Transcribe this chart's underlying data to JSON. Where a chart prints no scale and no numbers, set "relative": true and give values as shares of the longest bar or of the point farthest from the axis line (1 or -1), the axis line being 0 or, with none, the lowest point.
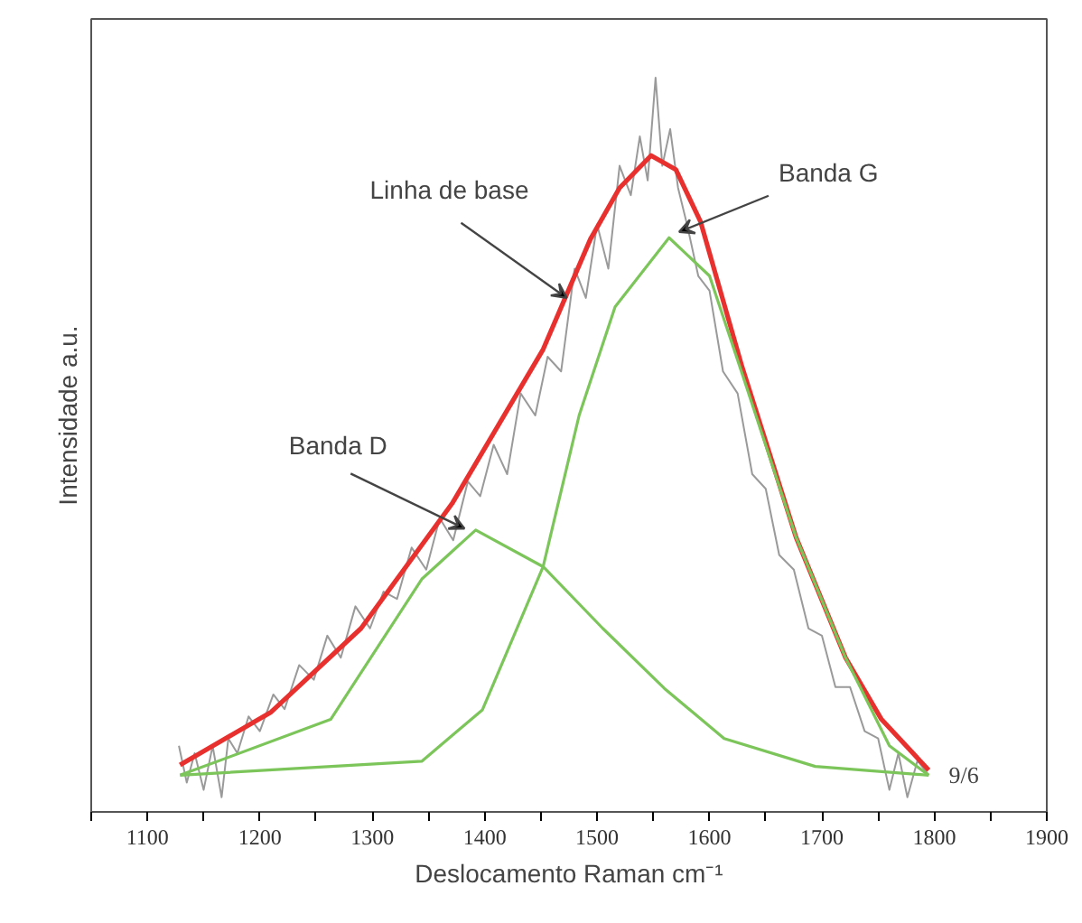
{
  "chart_data": {
    "type": "line",
    "relative": true,
    "xlabel": "Deslocamento Raman cm⁻¹",
    "ylabel": "Intensidade a.u.",
    "xlim": [
      1050,
      1900
    ],
    "xticks": [
      {
        "value": 1050,
        "label": null
      },
      1100,
      {
        "value": 1150,
        "label": null
      },
      1200,
      {
        "value": 1250,
        "label": null
      },
      1300,
      {
        "value": 1350,
        "label": null
      },
      1400,
      {
        "value": 1450,
        "label": null
      },
      1500,
      {
        "value": 1550,
        "label": null
      },
      1600,
      {
        "value": 1650,
        "label": null
      },
      1700,
      {
        "value": 1750,
        "label": null
      },
      1800,
      {
        "value": 1850,
        "label": null
      },
      1900
    ],
    "grid": false,
    "marker": "none",
    "line_style": "solid",
    "series": [
      {
        "color": "#9a9a9a",
        "x": [
          1128,
          1135,
          1142,
          1150,
          1158,
          1166,
          1172,
          1180,
          1190,
          1200,
          1212,
          1222,
          1235,
          1248,
          1260,
          1272,
          1285,
          1298,
          1310,
          1322,
          1335,
          1348,
          1360,
          1372,
          1385,
          1396,
          1408,
          1420,
          1432,
          1445,
          1456,
          1468,
          1480,
          1490,
          1500,
          1510,
          1520,
          1530,
          1538,
          1545,
          1552,
          1558,
          1565,
          1572,
          1580,
          1590,
          1600,
          1612,
          1625,
          1638,
          1650,
          1662,
          1675,
          1688,
          1700,
          1712,
          1725,
          1738,
          1750,
          1760,
          1768,
          1776,
          1785,
          1795
        ],
        "values": [
          0.09,
          0.04,
          0.08,
          0.03,
          0.09,
          0.02,
          0.1,
          0.08,
          0.13,
          0.11,
          0.16,
          0.14,
          0.2,
          0.18,
          0.24,
          0.21,
          0.28,
          0.25,
          0.3,
          0.29,
          0.36,
          0.33,
          0.4,
          0.37,
          0.45,
          0.43,
          0.5,
          0.46,
          0.57,
          0.54,
          0.62,
          0.6,
          0.74,
          0.7,
          0.8,
          0.74,
          0.88,
          0.84,
          0.92,
          0.86,
          1.0,
          0.88,
          0.93,
          0.85,
          0.8,
          0.73,
          0.71,
          0.6,
          0.57,
          0.46,
          0.44,
          0.35,
          0.33,
          0.25,
          0.24,
          0.17,
          0.17,
          0.11,
          0.1,
          0.03,
          0.08,
          0.02,
          0.07,
          0.05
        ]
      },
      {
        "color": "#e8312f",
        "x": [
          1129,
          1210,
          1290,
          1371,
          1452,
          1494,
          1520,
          1548,
          1570,
          1592,
          1629,
          1677,
          1721,
          1753,
          1795
        ],
        "values": [
          0.064,
          0.136,
          0.25,
          0.42,
          0.63,
          0.78,
          0.85,
          0.894,
          0.875,
          0.804,
          0.606,
          0.374,
          0.21,
          0.126,
          0.057
        ]
      },
      {
        "color": "#7cc55a",
        "x": [
          1129,
          1263,
          1344,
          1392,
          1452,
          1505,
          1560,
          1613,
          1694,
          1795
        ],
        "values": [
          0.05,
          0.126,
          0.317,
          0.384,
          0.334,
          0.25,
          0.168,
          0.1,
          0.062,
          0.05
        ]
      },
      {
        "color": "#7cc55a",
        "x": [
          1129,
          1344,
          1398,
          1452,
          1484,
          1516,
          1564,
          1600,
          1629,
          1677,
          1721,
          1760,
          1795
        ],
        "values": [
          0.05,
          0.069,
          0.139,
          0.334,
          0.54,
          0.688,
          0.782,
          0.73,
          0.597,
          0.374,
          0.21,
          0.09,
          0.05
        ]
      }
    ],
    "annotations": [
      {
        "text": "Linha de base",
        "x": 1473,
        "y": 0.7
      },
      {
        "text": "Banda D",
        "x": 1382,
        "y": 0.386
      },
      {
        "text": "Banda G",
        "x": 1573,
        "y": 0.79
      },
      {
        "text": "9/6",
        "x": 1800,
        "y": 0.05
      }
    ]
  }
}
